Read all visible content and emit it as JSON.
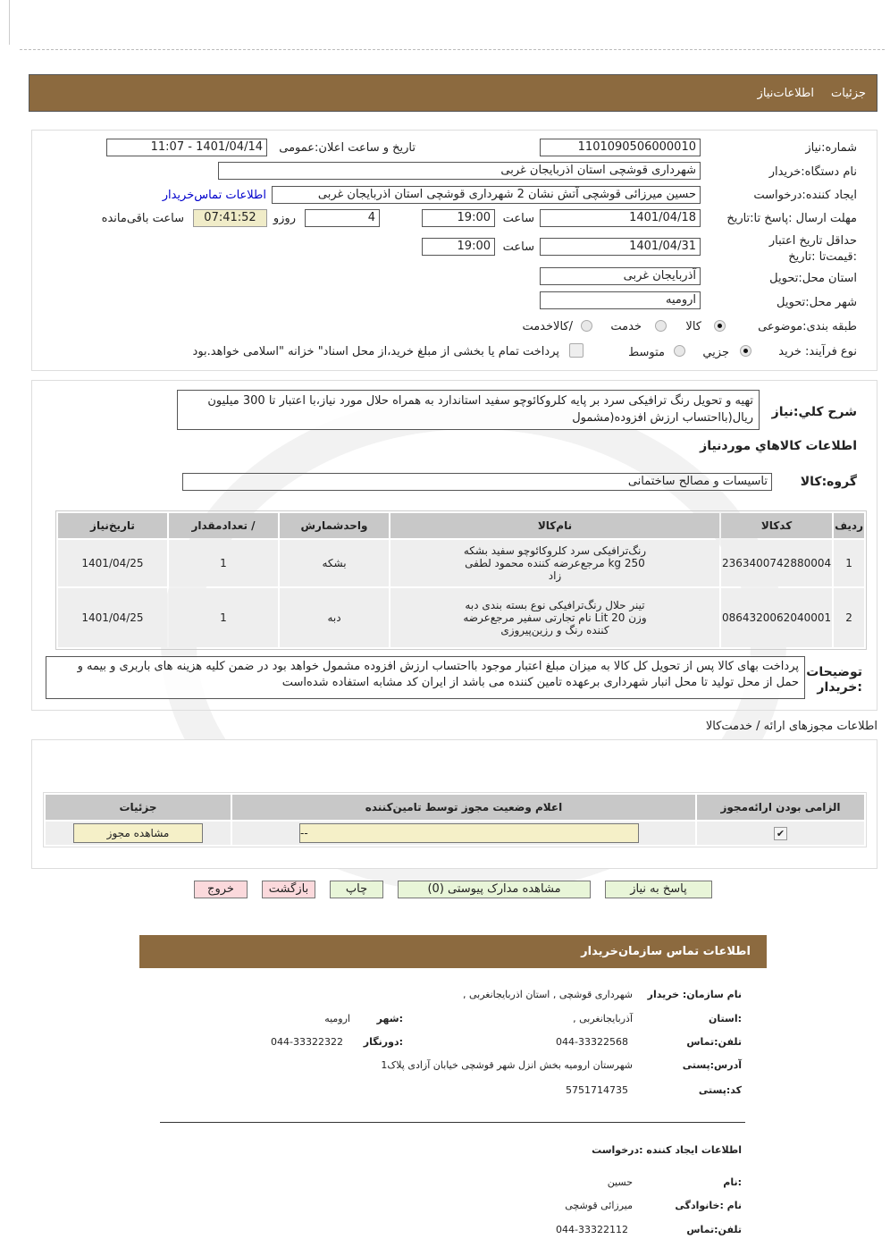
{
  "header": {
    "tabs": [
      "جزئیات",
      "اطلاعات‌نیاز"
    ]
  },
  "form": {
    "need_number_label": "شماره:نیاز",
    "need_number": "1101090506000010",
    "announce_label": "تاریخ و ساعت اعلان:عمومی",
    "announce_value": "1401/04/14 - 11:07",
    "buyer_org_label": "نام دستگاه:خریدار",
    "buyer_org": "شهرداری قوشچی استان اذربایجان غربی",
    "creator_label": "ایجاد کننده:درخواست",
    "creator": "حسین میرزائی قوشچی آتش نشان 2 شهرداری قوشچی استان اذربایجان غربی",
    "contact_link": "اطلاعات تماس‌خریدار",
    "deadline_label": "مهلت ارسال :پاسخ تا:تاریخ",
    "deadline_date": "1401/04/18",
    "time_label": "ساعت",
    "deadline_time": "19:00",
    "days": "4",
    "days_label": "روزو",
    "remaining": "07:41:52",
    "remaining_label": "ساعت باقی‌مانده",
    "validity_label": "حداقل تاریخ اعتبار :قیمت‌تا :تاریخ",
    "validity_date": "1401/04/31",
    "validity_time": "19:00",
    "province_label": "استان محل:تحویل",
    "province": "آذربایجان غربی",
    "city_label": "شهر محل:تحویل",
    "city": "ارومیه",
    "category_label": "طبقه بندی:موضوعی",
    "category_options": [
      "کالا",
      "خدمت",
      "/کالاخدمت"
    ],
    "category_selected": "کالا",
    "process_label": "نوع فرآیند: خرید",
    "process_options": [
      "جزيي",
      "متوسط"
    ],
    "process_selected": "جزيي",
    "treasury_note": "پرداخت تمام یا بخشی از مبلغ خرید،از محل اسناد\" خزانه \"اسلامی خواهد.بود"
  },
  "summary": {
    "label": "شرح کلي:نیاز",
    "text": "تهیه و تحویل رنگ ترافیکی سرد بر پایه کلروکائوچو سفید استاندارد به همراه حلال مورد نیاز،با اعتبار تا 300 میلیون ریال(بااحتساب ارزش افزوده(مشمول",
    "goods_title": "اطلاعات کالاهاي موردنیاز",
    "group_label": "گروه:کالا",
    "group": "تاسیسات و مصالح ساختمانی",
    "table": {
      "headers": [
        "ردیف",
        "کدکالا",
        "نام‌کالا",
        "واحدشمارش",
        "/ تعدادمقدار",
        "تاریخ‌نیاز"
      ],
      "rows": [
        [
          "1",
          "2363400742880004",
          "رنگ‌ترافیکی سرد کلروکائوچو سفید بشکه 250 kg مرجع‌عرضه کننده محمود لطفی زاد",
          "بشکه",
          "1",
          "1401/04/25"
        ],
        [
          "2",
          "0864320062040001",
          "تینر حلال رنگ‌ترافیکی نوع بسته بندی دبه وزن 20 Lit نام تجارتی سفیر مرجع‌عرضه کننده رنگ و رزین‌پیروزی",
          "دبه",
          "1",
          "1401/04/25"
        ]
      ]
    },
    "buyer_notes_label": "توضیحات :خریدار",
    "buyer_notes": "پرداخت بهای کالا پس از تحویل کل کالا به میزان مبلغ اعتبار موجود بااحتساب ارزش افزوده مشمول خواهد بود در ضمن کلیه هزینه های باربری و بیمه و حمل از محل تولید تا محل انبار شهرداری برعهده تامین کننده می باشد از ایران کد مشابه استفاده شده‌است"
  },
  "permits": {
    "title": "اطلاعات مجوزهای ارائه / خدمت‌کالا",
    "headers": [
      "الزامی بودن  ارائه‌مجوز",
      "اعلام وضعیت مجوز توسط تامین‌کننده",
      "جزئیات"
    ],
    "status_value": "--",
    "view_button": "مشاهده مجوز",
    "required_checked": true
  },
  "actions": {
    "reply": "پاسخ به نیاز",
    "attachments": "مشاهده مدارک پیوستی (0)",
    "print": "چاپ",
    "back": "بازگشت",
    "exit": "خروج"
  },
  "contact": {
    "title": "اطلاعات  تماس  سازمان‌خریدار",
    "org_label": "نام سازمان: خریدار",
    "org": "شهرداری قوشچی , استان اذربایجانغربی ,",
    "province_label": ":استان",
    "province": "آذربایجانغربی ,",
    "city_label": ":شهر",
    "city": "ارومیه",
    "phone_label": "تلفن:تماس",
    "phone": "044-33322568",
    "fax_label": ":دورنگار",
    "fax": "044-33322322",
    "address_label": "آدرس:پستی",
    "address": "شهرستان ارومیه بخش انزل شهر قوشچی خیابان آزادی پلاک1",
    "postal_label": "کد:پستی",
    "postal": "5751714735",
    "creator_title": "اطلاعات  ایجاد کننده :درخواست",
    "name_label": ":نام",
    "name": "حسین",
    "family_label": "نام :خانوادگی",
    "family": "میرزائی قوشچی",
    "creator_phone_label": "تلفن:تماس",
    "creator_phone": "044-33322112"
  },
  "colors": {
    "header_bar": "#8c6a3f",
    "remaining_bg": "#f0ecc8",
    "button_green": "#e8f5d8",
    "button_pink": "#fbd9dc",
    "link": "#0000cc"
  }
}
